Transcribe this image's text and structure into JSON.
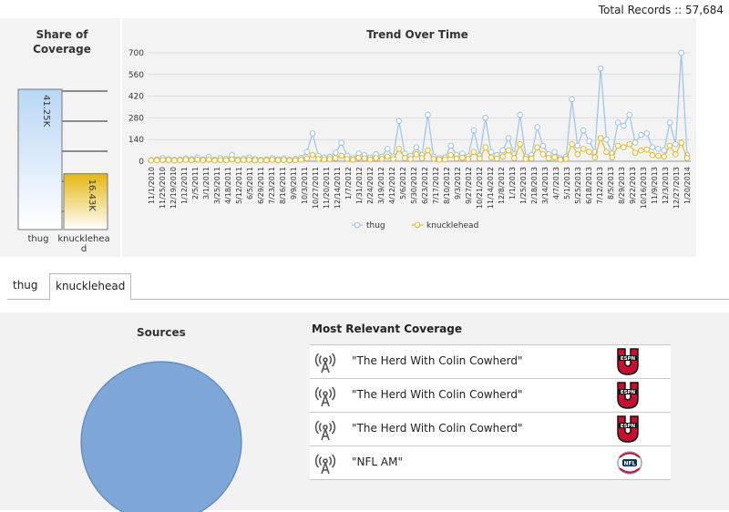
{
  "header": {
    "total_records": "Total Records :: 57,684"
  },
  "share": {
    "title_line1": "Share of",
    "title_line2": "Coverage",
    "bars": [
      {
        "label": "thug",
        "value": 41.25,
        "value_label": "41.25K",
        "color": "#b9d7f4"
      },
      {
        "label": "knucklehead",
        "value": 16.43,
        "value_label": "16.43K",
        "color": "#e4b710"
      }
    ]
  },
  "chart_data": {
    "type": "line",
    "title": "Trend Over Time",
    "ylim": [
      0,
      700
    ],
    "yticks": [
      0,
      140,
      280,
      420,
      560,
      700
    ],
    "x_tick_labels": [
      "11/1/2010",
      "11/25/2010",
      "12/19/2010",
      "1/12/2011",
      "2/5/2011",
      "3/1/2011",
      "3/25/2011",
      "4/18/2011",
      "5/12/2011",
      "6/5/2011",
      "6/29/2011",
      "7/23/2011",
      "8/16/2011",
      "9/9/2011",
      "10/3/2011",
      "10/27/2011",
      "11/20/2011",
      "12/14/2011",
      "1/7/2012",
      "1/31/2012",
      "2/24/2012",
      "3/19/2012",
      "4/12/2012",
      "5/6/2012",
      "5/30/2012",
      "6/23/2012",
      "7/17/2012",
      "8/10/2012",
      "9/3/2012",
      "9/27/2012",
      "10/21/2012",
      "11/14/2012",
      "12/8/2012",
      "1/1/2013",
      "1/25/2013",
      "2/18/2013",
      "3/14/2013",
      "4/7/2013",
      "5/1/2013",
      "5/25/2013",
      "6/18/2013",
      "7/12/2013",
      "8/5/2013",
      "8/29/2013",
      "9/22/2013",
      "10/16/2013",
      "11/9/2013",
      "12/3/2013",
      "12/27/2013",
      "1/20/2014"
    ],
    "legend_position": "bottom",
    "series": [
      {
        "name": "thug",
        "color": "#9dc3e6",
        "values": [
          8,
          12,
          20,
          15,
          10,
          12,
          18,
          14,
          25,
          12,
          30,
          10,
          20,
          15,
          40,
          12,
          18,
          25,
          15,
          10,
          12,
          20,
          14,
          18,
          10,
          15,
          22,
          60,
          180,
          35,
          25,
          30,
          55,
          120,
          35,
          20,
          50,
          40,
          25,
          45,
          30,
          80,
          30,
          260,
          50,
          35,
          90,
          40,
          300,
          30,
          20,
          25,
          100,
          40,
          50,
          30,
          200,
          35,
          280,
          60,
          40,
          70,
          150,
          45,
          300,
          30,
          40,
          220,
          100,
          45,
          60,
          20,
          30,
          400,
          100,
          200,
          130,
          60,
          600,
          140,
          50,
          250,
          230,
          300,
          120,
          170,
          180,
          90,
          80,
          70,
          250,
          110,
          700,
          40
        ]
      },
      {
        "name": "knucklehead",
        "color": "#e8b920",
        "values": [
          5,
          6,
          8,
          7,
          5,
          6,
          9,
          7,
          10,
          6,
          10,
          5,
          8,
          6,
          12,
          5,
          8,
          9,
          6,
          5,
          6,
          9,
          6,
          8,
          5,
          7,
          9,
          18,
          40,
          15,
          12,
          14,
          20,
          35,
          15,
          10,
          22,
          18,
          12,
          20,
          15,
          30,
          15,
          80,
          20,
          15,
          45,
          20,
          70,
          15,
          10,
          12,
          40,
          18,
          22,
          15,
          60,
          18,
          90,
          25,
          18,
          30,
          70,
          20,
          110,
          15,
          18,
          90,
          45,
          20,
          25,
          10,
          15,
          110,
          45,
          80,
          60,
          25,
          150,
          60,
          25,
          100,
          90,
          110,
          55,
          70,
          75,
          40,
          35,
          30,
          100,
          45,
          120,
          20
        ]
      }
    ]
  },
  "tabs": [
    {
      "label": "thug",
      "active": false
    },
    {
      "label": "knucklehead",
      "active": true
    }
  ],
  "sources": {
    "title": "Sources",
    "pie_color": "#7ea6d6"
  },
  "relevant": {
    "title": "Most Relevant Coverage",
    "items": [
      {
        "title": "\"The Herd With Colin Cowherd\"",
        "logo": "espnu-logo"
      },
      {
        "title": "\"The Herd With Colin Cowherd\"",
        "logo": "espnu-logo"
      },
      {
        "title": "\"The Herd With Colin Cowherd\"",
        "logo": "espnu-logo"
      },
      {
        "title": "\"NFL AM\"",
        "logo": "nfl-network-logo"
      }
    ]
  }
}
